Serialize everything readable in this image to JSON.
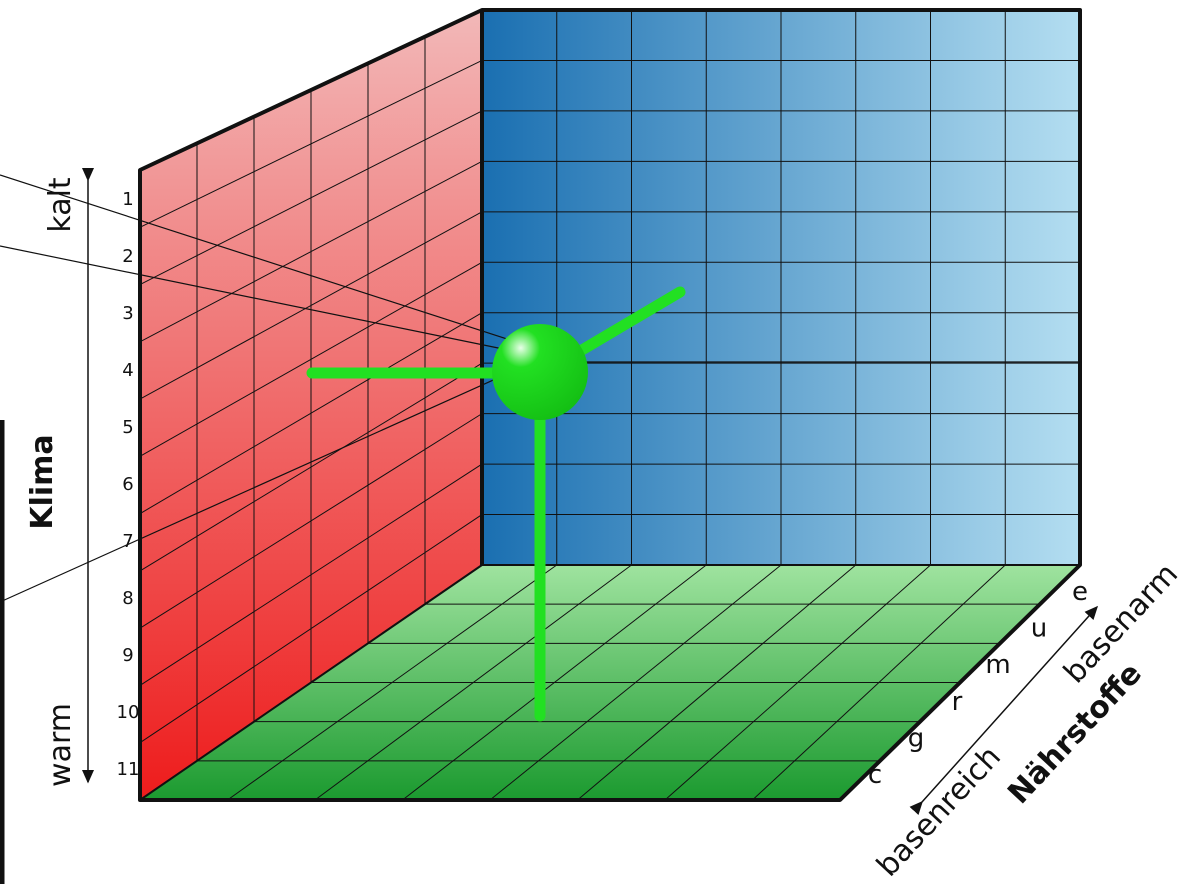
{
  "colors": {
    "red_light": "#f2b8b8",
    "red_dark": "#ee1c1c",
    "blue_dark": "#1a6fb1",
    "blue_light": "#b4def1",
    "green_light": "#9fe39f",
    "green_dark": "#1b9a2f",
    "marker": "#22e022",
    "outline": "#111111"
  },
  "climate_axis": {
    "title": "Klima",
    "top_label": "kalt",
    "bottom_label": "warm",
    "ticks": [
      "1",
      "2",
      "3",
      "4",
      "5",
      "6",
      "7",
      "8",
      "9",
      "10",
      "11"
    ]
  },
  "nutrient_axis": {
    "title": "Nährstoffe",
    "left_label": "basenreich",
    "right_label": "basenarm",
    "ticks": [
      "c",
      "g",
      "r",
      "m",
      "u",
      "e"
    ]
  }
}
